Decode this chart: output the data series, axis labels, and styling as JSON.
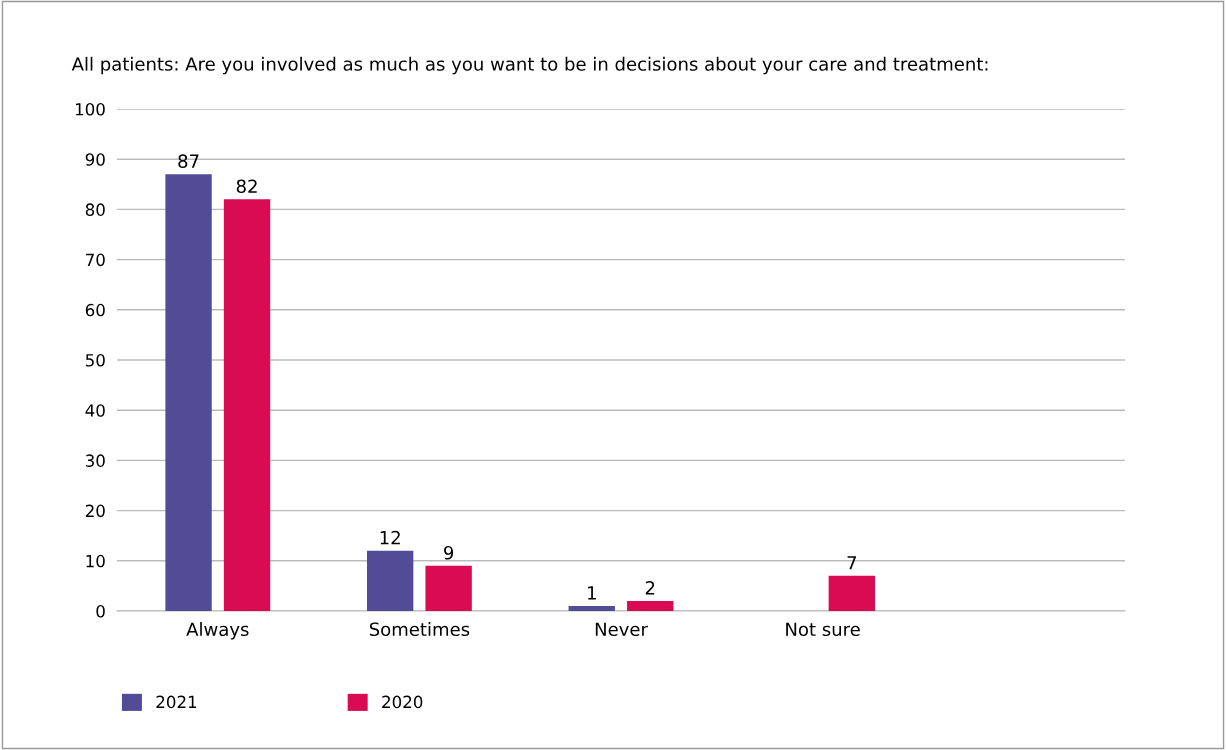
{
  "chart_data": {
    "type": "bar",
    "title": "All patients: Are you involved as much as you want to be in decisions about your care and treatment:",
    "categories": [
      "Always",
      "Sometimes",
      "Never",
      "Not sure",
      null
    ],
    "series": [
      {
        "name": "2021",
        "color": "#524c96",
        "values": [
          87,
          12,
          1,
          null,
          null
        ]
      },
      {
        "name": "2020",
        "color": "#d90b52",
        "values": [
          82,
          9,
          2,
          7,
          null
        ]
      }
    ],
    "ylim": [
      0,
      100
    ],
    "yticks": [
      0,
      10,
      20,
      30,
      40,
      50,
      60,
      70,
      80,
      90,
      100
    ],
    "grid": "y",
    "legend": "bottom",
    "data_labels": true
  }
}
